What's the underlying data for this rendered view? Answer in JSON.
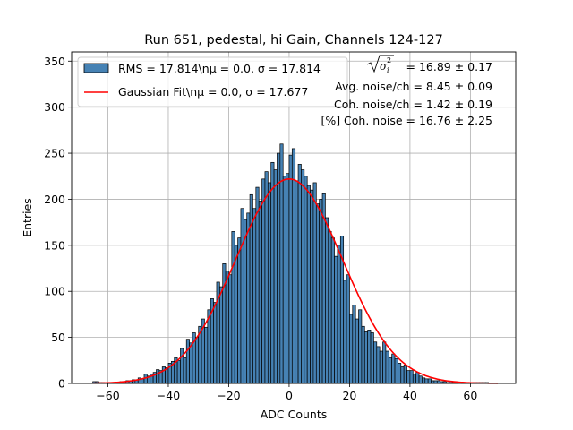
{
  "chart_data": {
    "type": "histogram",
    "title": "Run 651, pedestal, hi Gain, Channels 124-127",
    "xlabel": "ADC Counts",
    "ylabel": "Entries",
    "xlim": [
      -72,
      75
    ],
    "ylim": [
      0,
      360
    ],
    "xticks": [
      -60,
      -40,
      -20,
      0,
      20,
      40,
      60
    ],
    "yticks": [
      0,
      50,
      100,
      150,
      200,
      250,
      300,
      350
    ],
    "grid": true,
    "bin_start": -65,
    "bin_width": 1,
    "hist_values": [
      2,
      2,
      1,
      1,
      0,
      1,
      1,
      0,
      1,
      2,
      2,
      3,
      3,
      4,
      4,
      6,
      5,
      10,
      8,
      10,
      12,
      15,
      14,
      18,
      17,
      22,
      24,
      28,
      25,
      38,
      28,
      48,
      44,
      55,
      50,
      62,
      70,
      61,
      80,
      92,
      88,
      110,
      105,
      130,
      122,
      118,
      165,
      150,
      158,
      190,
      178,
      185,
      205,
      190,
      213,
      198,
      222,
      230,
      218,
      240,
      232,
      250,
      260,
      225,
      228,
      248,
      255,
      220,
      238,
      232,
      225,
      215,
      210,
      218,
      195,
      200,
      206,
      180,
      165,
      158,
      138,
      150,
      160,
      112,
      118,
      75,
      85,
      70,
      80,
      62,
      56,
      58,
      55,
      45,
      40,
      35,
      45,
      35,
      28,
      32,
      27,
      22,
      18,
      20,
      14,
      14,
      10,
      12,
      8,
      6,
      5,
      5,
      3,
      3,
      3,
      2,
      2,
      1,
      2,
      1,
      1,
      0,
      1,
      1,
      1,
      1,
      1,
      1,
      1,
      1,
      1
    ],
    "series": [
      {
        "name": "RMS = 17.814\\nμ = 0.0, σ = 17.814",
        "type": "histogram",
        "color": "#4682b4"
      },
      {
        "name": "Gaussian Fit\\nμ = 0.0, σ = 17.677",
        "type": "line",
        "color": "#ff0000",
        "mu": 0.0,
        "sigma": 17.677,
        "amplitude": 222,
        "x_range": [
          -65,
          69
        ]
      }
    ],
    "legend_position": "upper-left",
    "annotations": [
      {
        "label": "√σᵢ²",
        "value": "= 16.89 ± 0.17"
      },
      {
        "label": "Avg. noise/ch",
        "value": "= 8.45 ± 0.09"
      },
      {
        "label": "Coh. noise/ch",
        "value": "= 1.42 ± 0.19"
      },
      {
        "label": "[%] Coh. noise",
        "value": "= 16.76 ± 2.25"
      }
    ]
  },
  "legend": {
    "rms_label": "RMS = 17.814\\nμ = 0.0, σ = 17.814",
    "fit_label": "Gaussian Fit\\nμ = 0.0, σ = 17.677"
  },
  "annotations_text": {
    "line1": "= 16.89 ± 0.17",
    "line2": "Avg. noise/ch = 8.45 ± 0.09",
    "line3": "Coh. noise/ch = 1.42 ± 0.19",
    "line4": "[%] Coh. noise = 16.76 ± 2.25"
  }
}
